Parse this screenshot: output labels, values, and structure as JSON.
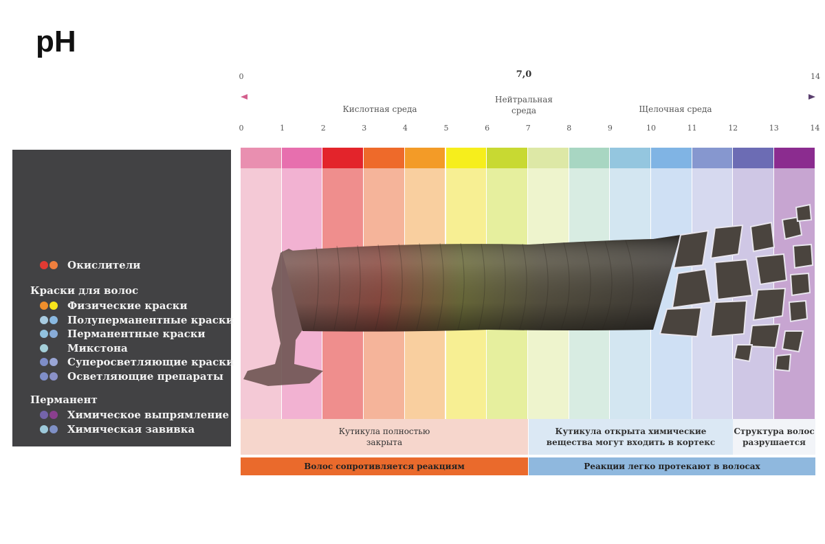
{
  "title": "pH",
  "scale": {
    "min_label": "0",
    "mid_label": "7,0",
    "max_label": "14",
    "acidic_label": "Кислотная среда",
    "neutral_label": "Нейтральная\nсреда",
    "alkaline_label": "Щелочная среда",
    "ticks": [
      "0",
      "1",
      "2",
      "3",
      "4",
      "5",
      "6",
      "7",
      "8",
      "9",
      "10",
      "11",
      "12",
      "13",
      "14"
    ],
    "arrow_left_color": "#d35f8d",
    "arrow_right_color": "#5a3f6e"
  },
  "bands": [
    {
      "top": "#e98fb0",
      "body": "#f4c9d6"
    },
    {
      "top": "#e76fae",
      "body": "#f2b2d2"
    },
    {
      "top": "#e3242b",
      "body": "#ef8e8d"
    },
    {
      "top": "#ee6a2a",
      "body": "#f5b49a"
    },
    {
      "top": "#f39b27",
      "body": "#f9cf9f"
    },
    {
      "top": "#f6ee1c",
      "body": "#f7ef93"
    },
    {
      "top": "#c8d932",
      "body": "#e6ef9e"
    },
    {
      "top": "#dde8a6",
      "body": "#eef4cd"
    },
    {
      "top": "#a8d6c2",
      "body": "#d8ece2"
    },
    {
      "top": "#94c6df",
      "body": "#d3e6f1"
    },
    {
      "top": "#80b4e4",
      "body": "#cfe0f4"
    },
    {
      "top": "#8697cf",
      "body": "#d6d9ef"
    },
    {
      "top": "#6c6cb4",
      "body": "#cfc7e5"
    },
    {
      "top": "#8b2c8f",
      "body": "#c7a5d1"
    }
  ],
  "legend": {
    "oxidizers": {
      "label": "Окислители",
      "dots": [
        "#e03a33",
        "#ef7f3e"
      ]
    },
    "dyes_heading": "Краски для волос",
    "dyes": [
      {
        "label": "Физические краски",
        "dots": [
          "#ef8f2c",
          "#f7e41b"
        ]
      },
      {
        "label": "Полуперманентные краски",
        "dots": [
          "#a8cbe0",
          "#8ab9e1"
        ]
      },
      {
        "label": "Перманентные краски",
        "dots": [
          "#91c2df",
          "#88acd8"
        ]
      },
      {
        "label": "Микстона",
        "dots": [
          "#a4cfd9"
        ]
      },
      {
        "label": "Суперосветляющие краски",
        "dots": [
          "#7e8dc8",
          "#9aa6d6"
        ]
      },
      {
        "label": "Осветляющие препараты",
        "dots": [
          "#7f8ec9",
          "#8a91c8"
        ]
      }
    ],
    "perm_heading": "Перманент",
    "perm": [
      {
        "label": "Химическое выпрямление",
        "dots": [
          "#7464aa",
          "#8a3f8f"
        ]
      },
      {
        "label": "Химическая завивка",
        "dots": [
          "#9dc9da",
          "#7f90c6"
        ]
      }
    ]
  },
  "info": {
    "left": "Кутикула полностью\nзакрыта",
    "middle": "Кутикула открыта химические\nвещества могут входить в кортекс",
    "right": "Структура волос\nразрушается"
  },
  "bars": {
    "left": "Волос сопротивляется реакциям",
    "right": "Реакции легко протекают в волосах"
  }
}
